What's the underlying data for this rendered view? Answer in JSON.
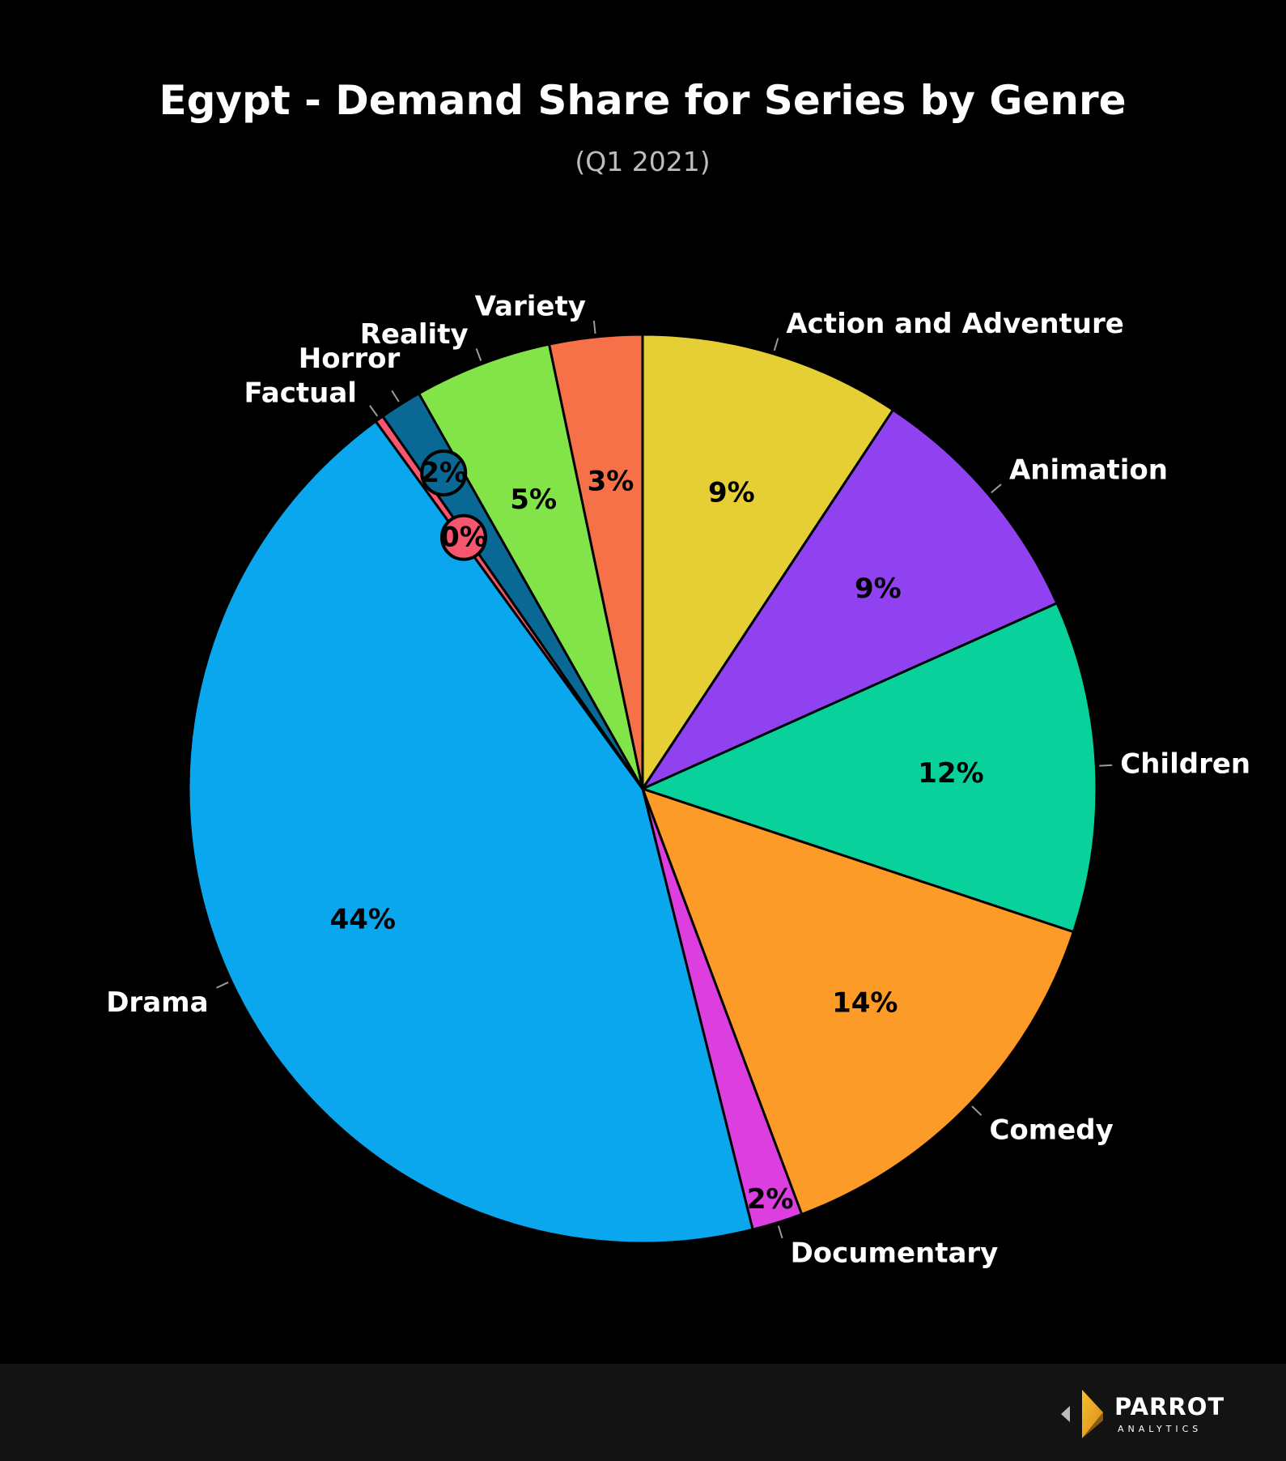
{
  "chart_data": {
    "type": "pie",
    "title": "Egypt - Demand Share for Series by Genre",
    "subtitle": "(Q1 2021)",
    "start_angle_deg": 0,
    "direction": "clockwise",
    "slices": [
      {
        "name": "Action and Adventure",
        "value": 9.3,
        "label": "9%",
        "color": "#e5cf35"
      },
      {
        "name": "Animation",
        "value": 9.0,
        "label": "9%",
        "color": "#9042f0"
      },
      {
        "name": "Children",
        "value": 11.8,
        "label": "12%",
        "color": "#08d19b"
      },
      {
        "name": "Comedy",
        "value": 14.2,
        "label": "14%",
        "color": "#fd9b28"
      },
      {
        "name": "Documentary",
        "value": 1.8,
        "label": "2%",
        "color": "#dc3ee0"
      },
      {
        "name": "Drama",
        "value": 43.9,
        "label": "44%",
        "color": "#0aa7ef"
      },
      {
        "name": "Factual",
        "value": 0.3,
        "label": "0%",
        "color": "#f6566e"
      },
      {
        "name": "Horror",
        "value": 1.5,
        "label": "2%",
        "color": "#096894"
      },
      {
        "name": "Reality",
        "value": 4.9,
        "label": "5%",
        "color": "#83e44a"
      },
      {
        "name": "Variety",
        "value": 3.3,
        "label": "3%",
        "color": "#f67148"
      }
    ],
    "callout_labels": [
      "Factual",
      "Horror"
    ]
  },
  "footer": {
    "logo_text": "PARROT",
    "logo_subtext": "ANALYTICS"
  }
}
